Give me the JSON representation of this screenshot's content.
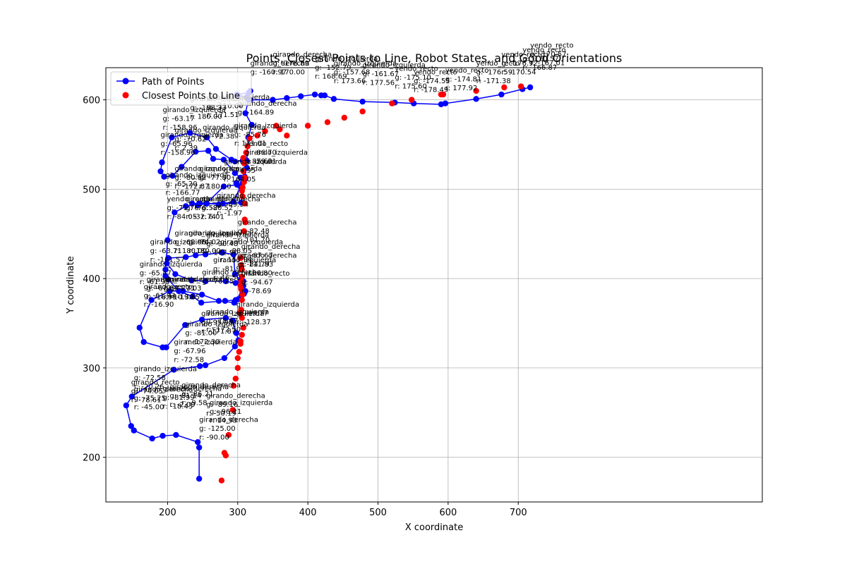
{
  "chart_data": {
    "type": "scatter",
    "title": "Points, Closest Points to Line, Robot States, and Good Orientations",
    "xlabel": "X coordinate",
    "ylabel": "Y coordinate",
    "xlim": [
      112,
      1048
    ],
    "ylim": [
      150,
      636
    ],
    "xticks": [
      200,
      300,
      400,
      500,
      600,
      700
    ],
    "yticks": [
      200,
      300,
      400,
      500,
      600
    ],
    "grid": true,
    "legend": {
      "placement": "top-left",
      "entries": [
        "Path of Points",
        "Closest Points to Line"
      ]
    },
    "colors": {
      "path": "#0000ff",
      "closest": "#ff0000",
      "grid": "#b0b0b0"
    },
    "series": [
      {
        "name": "Path of Points",
        "style": "line-with-markers",
        "x": [
          245,
          245,
          243,
          212,
          193,
          178,
          152,
          148,
          141,
          149,
          209,
          246,
          254,
          281,
          296,
          301,
          298,
          293,
          283,
          249,
          225,
          198,
          193,
          166,
          160,
          177,
          203,
          222,
          249,
          273,
          295,
          301,
          305,
          308,
          304,
          296,
          294,
          278,
          254,
          240,
          226,
          201,
          199,
          211,
          234,
          254,
          283,
          297,
          308,
          311,
          309,
          305,
          297,
          282,
          248,
          236,
          216,
          201,
          197,
          197,
          200,
          210,
          226,
          245,
          279,
          294,
          304,
          307,
          311,
          304,
          296,
          280,
          265,
          258,
          240,
          220,
          207,
          195,
          190,
          192,
          206,
          232,
          256,
          269,
          291,
          296,
          307,
          313,
          310,
          298,
          299,
          280,
          255,
          243,
          235,
          246,
          256,
          273,
          305,
          313,
          315,
          320,
          311,
          318,
          316,
          299,
          300,
          313,
          315,
          318,
          350,
          370,
          390,
          410,
          419,
          424,
          437,
          478,
          524,
          551,
          590,
          596,
          640,
          676,
          706,
          717
        ],
        "y": [
          176,
          211,
          217,
          225,
          224,
          221,
          230,
          235,
          258,
          268,
          298,
          302,
          303,
          311,
          324,
          331,
          339,
          353,
          356,
          354,
          348,
          323,
          323,
          329,
          345,
          376,
          386,
          386,
          382,
          375,
          373,
          377,
          389,
          397,
          398,
          405,
          427,
          429,
          427,
          426,
          424,
          423,
          417,
          405,
          398,
          397,
          397,
          395,
          392,
          386,
          383,
          380,
          376,
          375,
          373,
          380,
          386,
          399,
          403,
          410,
          443,
          474,
          481,
          484,
          484,
          486,
          503,
          507,
          512,
          513,
          518,
          533,
          534,
          543,
          542,
          525,
          515,
          514,
          520,
          530,
          558,
          563,
          558,
          545,
          533,
          531,
          532,
          524,
          514,
          507,
          505,
          503,
          484,
          482,
          484,
          484,
          484,
          483,
          485,
          532,
          558,
          572,
          585,
          610,
          608,
          606,
          605,
          603,
          601,
          600,
          600,
          602,
          604,
          606,
          605,
          605,
          601,
          598,
          597,
          596,
          595,
          596,
          601,
          606,
          612,
          614
        ]
      },
      {
        "name": "Closest Points to Line",
        "style": "markers",
        "x": [
          277,
          283,
          281,
          287,
          293,
          294,
          297,
          300,
          300,
          302,
          304,
          304,
          306,
          308,
          306,
          304,
          305,
          306,
          307,
          305,
          304,
          305,
          306,
          306,
          305,
          304,
          309,
          311,
          310,
          310,
          307,
          306,
          307,
          309,
          310,
          308,
          309,
          308,
          312,
          314,
          317,
          328,
          339,
          355,
          360,
          370,
          400,
          428,
          452,
          478,
          520,
          548,
          590,
          593,
          640,
          680,
          704
        ],
        "y": [
          174,
          202,
          205,
          225,
          253,
          280,
          288,
          300,
          311,
          318,
          327,
          330,
          337,
          345,
          356,
          362,
          365,
          376,
          382,
          388,
          392,
          397,
          402,
          410,
          415,
          423,
          453,
          463,
          466,
          484,
          492,
          498,
          502,
          508,
          513,
          520,
          529,
          535,
          541,
          548,
          557,
          560,
          565,
          571,
          567,
          560,
          571,
          575,
          580,
          587,
          596,
          600,
          606,
          606,
          610,
          614,
          615
        ]
      }
    ],
    "annotations": [
      {
        "x": 245,
        "y": 211,
        "lines": [
          "girando_derecha",
          "g: -125.00",
          "r: -90.00"
        ]
      },
      {
        "x": 209,
        "y": 298,
        "lines": [
          "girando_izquierda",
          "g: -67.96",
          "r: -72.58"
        ]
      },
      {
        "x": 152,
        "y": 268,
        "lines": [
          "girando_izquierda",
          "g: -72.58",
          "r: -20.26"
        ]
      },
      {
        "x": 148,
        "y": 253,
        "lines": [
          "girando_recto",
          "g: -74.05",
          "r: -78.61"
        ]
      },
      {
        "x": 152,
        "y": 245,
        "lines": [
          "girando_derecha",
          "g: -75.25",
          "r: -45.00"
        ]
      },
      {
        "x": 193,
        "y": 246,
        "lines": [
          "girando_derecha",
          "g: -81.99",
          "r: -18.43"
        ]
      },
      {
        "x": 203,
        "y": 248,
        "lines": [
          "girando_derecha",
          "g: -81.14",
          "r: -2.09"
        ]
      },
      {
        "x": 220,
        "y": 250,
        "lines": [
          "girando_derecha",
          "g: -86.21",
          "r: -9.58"
        ]
      },
      {
        "x": 255,
        "y": 238,
        "lines": [
          "girando_derecha",
          "g: -89.16",
          "r: -50.19"
        ]
      },
      {
        "x": 260,
        "y": 230,
        "lines": [
          "girando_izquierda",
          "g: -96.21",
          "r: 14.93"
        ]
      },
      {
        "x": 225,
        "y": 318,
        "lines": [
          "girando_izquierda",
          "g: -81.00",
          "r: -172.30"
        ]
      },
      {
        "x": 248,
        "y": 330,
        "lines": [
          "girando_izquierda",
          "g: -95.90",
          "r: -171.87"
        ]
      },
      {
        "x": 255,
        "y": 332,
        "lines": [
          "girando_izquierda",
          "g: -78.67",
          "r: -172.50"
        ]
      },
      {
        "x": 298,
        "y": 340,
        "lines": [
          "girando_izquierda",
          "g: -99.77",
          "r: -128.37"
        ]
      },
      {
        "x": 166,
        "y": 360,
        "lines": [
          "girando_recto",
          "g: -61.93",
          "r: -16.90"
        ]
      },
      {
        "x": 170,
        "y": 368,
        "lines": [
          "girando_recto",
          "g: -67.84",
          "r: -16.99"
        ]
      },
      {
        "x": 194,
        "y": 368,
        "lines": [
          "girando_derecha",
          "g: -71.31",
          "r: -10.30"
        ]
      },
      {
        "x": 203,
        "y": 368,
        "lines": [
          "girando_derecha",
          "g: -77.03",
          "r: -19.65"
        ]
      },
      {
        "x": 249,
        "y": 376,
        "lines": [
          "girando_derecha",
          "g: -76.25",
          ""
        ]
      },
      {
        "x": 160,
        "y": 385,
        "lines": [
          "girando_izquierda",
          "g: -65.47",
          "r: -61.93"
        ]
      },
      {
        "x": 265,
        "y": 390,
        "lines": [
          "girando_izquierda",
          "g: -81.97",
          "r: 46.50"
        ]
      },
      {
        "x": 305,
        "y": 375,
        "lines": [
          "girando_recto",
          "g: -94.67",
          "r: -78.69"
        ]
      },
      {
        "x": 175,
        "y": 410,
        "lines": [
          "girando_izquierda",
          "g: -63.71",
          "r: -161.57"
        ]
      },
      {
        "x": 210,
        "y": 420,
        "lines": [
          "girando_izquierda",
          "g: -62.98",
          "r: 180.00"
        ]
      },
      {
        "x": 230,
        "y": 420,
        "lines": [
          "girando_izquierda",
          "g: -74.02",
          "r: 180.00"
        ]
      },
      {
        "x": 255,
        "y": 418,
        "lines": [
          "girando_izquierda",
          "g: -90.48",
          "r: 162.90"
        ]
      },
      {
        "x": 275,
        "y": 410,
        "lines": [
          "girando_izquierda",
          "g: -88.05",
          "r: 157.94"
        ]
      },
      {
        "x": 305,
        "y": 405,
        "lines": [
          "girando_derecha",
          "g: -87.67",
          "r: 111.83"
        ]
      },
      {
        "x": 300,
        "y": 432,
        "lines": [
          "girando_derecha",
          "g: -82.48",
          "r: 101.70"
        ]
      },
      {
        "x": 300,
        "y": 395,
        "lines": [
          "girando_derecha",
          "g: -84.79",
          "r: -136.80"
        ]
      },
      {
        "x": 199,
        "y": 458,
        "lines": [
          "yendo_recto",
          "g: -71.76",
          "r: -84.05"
        ]
      },
      {
        "x": 226,
        "y": 458,
        "lines": [
          "girando_derecha",
          "g: -76.52",
          "r: -32.74"
        ]
      },
      {
        "x": 248,
        "y": 458,
        "lines": [
          "girando_derecha",
          "g: -80.52",
          "r: 6.01"
        ]
      },
      {
        "x": 270,
        "y": 462,
        "lines": [
          "girando_derecha",
          "g: -89.34",
          "r: -1.97"
        ]
      },
      {
        "x": 197,
        "y": 485,
        "lines": [
          "girando_izquierda",
          "g: -65.20",
          "r: -166.77"
        ]
      },
      {
        "x": 210,
        "y": 492,
        "lines": [
          "girando_izquierda",
          "g: -80.82",
          "r: -172.87"
        ]
      },
      {
        "x": 245,
        "y": 492,
        "lines": [
          "girando_izquierda",
          "g: -77.80",
          "r: 180.00"
        ]
      },
      {
        "x": 280,
        "y": 500,
        "lines": [
          "girando_izquierda",
          "g: -74.95",
          "r: 164.05"
        ]
      },
      {
        "x": 310,
        "y": 510,
        "lines": [
          "girando_izquierda",
          "g: -79.31",
          ""
        ]
      },
      {
        "x": 190,
        "y": 530,
        "lines": [
          "girando_izquierda",
          "g: -65.96",
          "r: -158.96"
        ]
      },
      {
        "x": 210,
        "y": 535,
        "lines": [
          "girando_izquierda",
          "g: -70.62",
          "r: 2.39"
        ]
      },
      {
        "x": 250,
        "y": 538,
        "lines": [
          "girando_izquierda",
          "g: -72.38",
          ""
        ]
      },
      {
        "x": 295,
        "y": 540,
        "lines": [
          "girando_izquierda",
          "g: -85.76",
          "r: 171.01"
        ]
      },
      {
        "x": 310,
        "y": 520,
        "lines": [
          "yendo_recto",
          "g: -86.70",
          "r: 85.60"
        ]
      },
      {
        "x": 193,
        "y": 558,
        "lines": [
          "girando_izquierda",
          "g: -63.17",
          "r: -158.96"
        ]
      },
      {
        "x": 232,
        "y": 570,
        "lines": [
          "girando_izquierda",
          "g: -108.33",
          "r: 180.00"
        ]
      },
      {
        "x": 256,
        "y": 572,
        "lines": [
          "girando_izquierda",
          "g: -110.00",
          "r: 171.51"
        ]
      },
      {
        "x": 300,
        "y": 565,
        "lines": [
          "girando_derecha",
          "g: -164.89",
          ""
        ]
      },
      {
        "x": 318,
        "y": 610,
        "lines": [
          "girando_derecha",
          "g: -160.97",
          ""
        ]
      },
      {
        "x": 350,
        "y": 620,
        "lines": [
          "girando_derecha",
          "g: -176.89",
          "r: 170.00"
        ]
      },
      {
        "x": 410,
        "y": 615,
        "lines": [
          "girando_izquierda",
          "g: -152.79",
          "r: 168.69"
        ]
      },
      {
        "x": 437,
        "y": 610,
        "lines": [
          "girando_izquierda",
          "g: -157.68",
          "r: 173.66"
        ]
      },
      {
        "x": 478,
        "y": 608,
        "lines": [
          "girando_izquierda",
          "g: -161.67",
          "r: 177.56"
        ]
      },
      {
        "x": 524,
        "y": 604,
        "lines": [
          "yendo_recto",
          "g: -175.10",
          "r: 175.60"
        ]
      },
      {
        "x": 551,
        "y": 600,
        "lines": [
          "yendo_recto",
          "g: -174.55",
          "r: -178.49"
        ]
      },
      {
        "x": 596,
        "y": 602,
        "lines": [
          "yendo_recto",
          "g: -174.81",
          "r: 177.92"
        ]
      },
      {
        "x": 640,
        "y": 610,
        "lines": [
          "yendo_recto",
          "g: -176.59",
          "r: -171.38"
        ]
      },
      {
        "x": 676,
        "y": 620,
        "lines": [
          "yendo_recto",
          "g: -176.92",
          "r: -170.54"
        ]
      },
      {
        "x": 706,
        "y": 625,
        "lines": [
          "yendo_recto",
          "g: -170.57",
          "r: -166.87"
        ]
      },
      {
        "x": 717,
        "y": 630,
        "lines": [
          "yendo_recto",
          "g: -170.57",
          "r: -167.01"
        ]
      }
    ]
  }
}
